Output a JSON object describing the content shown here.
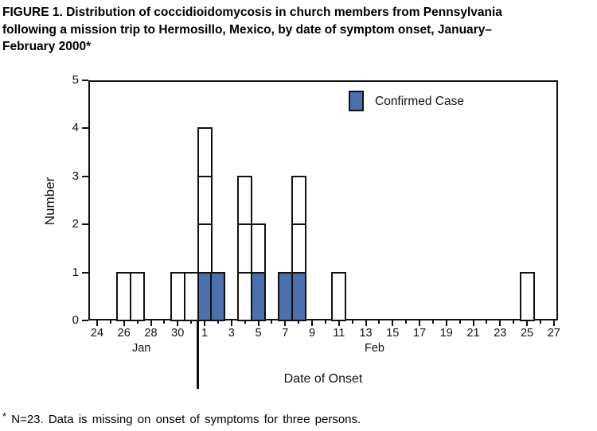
{
  "figure_title": {
    "line1": "FIGURE 1. Distribution of coccidioidomycosis in church members from Pennsylvania",
    "line2": "following a mission trip to Hermosillo, Mexico, by date of symptom onset, January–",
    "line3": "February 2000*"
  },
  "legend": {
    "label": "Confirmed Case",
    "swatch_color": "#4b70ae"
  },
  "footnote": {
    "marker": "*",
    "text": "N=23. Data is missing on onset of symptoms for three persons."
  },
  "chart_data": {
    "type": "bar",
    "subtype": "stacked-epidemic-curve",
    "title": "Distribution of coccidioidomycosis cases by date of symptom onset",
    "xlabel": "Date of Onset",
    "ylabel": "Number",
    "ylim": [
      0,
      5
    ],
    "yticks": [
      0,
      1,
      2,
      3,
      4,
      5
    ],
    "grid": false,
    "legend_position": "top-right-inside",
    "x_axis_start": {
      "month": "Jan",
      "day": 24
    },
    "x_axis_end": {
      "month": "Feb",
      "day": 27
    },
    "x_tick_labels": [
      {
        "month": "Jan",
        "day": 24
      },
      {
        "month": "Jan",
        "day": 26
      },
      {
        "month": "Jan",
        "day": 28
      },
      {
        "month": "Jan",
        "day": 30
      },
      {
        "month": "Feb",
        "day": 1
      },
      {
        "month": "Feb",
        "day": 3
      },
      {
        "month": "Feb",
        "day": 5
      },
      {
        "month": "Feb",
        "day": 7
      },
      {
        "month": "Feb",
        "day": 9
      },
      {
        "month": "Feb",
        "day": 11
      },
      {
        "month": "Feb",
        "day": 13
      },
      {
        "month": "Feb",
        "day": 15
      },
      {
        "month": "Feb",
        "day": 17
      },
      {
        "month": "Feb",
        "day": 19
      },
      {
        "month": "Feb",
        "day": 21
      },
      {
        "month": "Feb",
        "day": 23
      },
      {
        "month": "Feb",
        "day": 25
      },
      {
        "month": "Feb",
        "day": 27
      }
    ],
    "month_labels": [
      "Jan",
      "Feb"
    ],
    "bars": [
      {
        "month": "Jan",
        "day": 26,
        "cases": 1,
        "confirmed": 0
      },
      {
        "month": "Jan",
        "day": 27,
        "cases": 1,
        "confirmed": 0
      },
      {
        "month": "Jan",
        "day": 30,
        "cases": 1,
        "confirmed": 0
      },
      {
        "month": "Jan",
        "day": 31,
        "cases": 1,
        "confirmed": 0
      },
      {
        "month": "Feb",
        "day": 1,
        "cases": 4,
        "confirmed": 1
      },
      {
        "month": "Feb",
        "day": 2,
        "cases": 1,
        "confirmed": 1
      },
      {
        "month": "Feb",
        "day": 4,
        "cases": 3,
        "confirmed": 0
      },
      {
        "month": "Feb",
        "day": 5,
        "cases": 2,
        "confirmed": 1
      },
      {
        "month": "Feb",
        "day": 7,
        "cases": 1,
        "confirmed": 1
      },
      {
        "month": "Feb",
        "day": 8,
        "cases": 3,
        "confirmed": 1
      },
      {
        "month": "Feb",
        "day": 11,
        "cases": 1,
        "confirmed": 0
      },
      {
        "month": "Feb",
        "day": 25,
        "cases": 1,
        "confirmed": 0
      }
    ],
    "totals": {
      "cases_plotted": 20,
      "confirmed_cases": 5
    },
    "colors": {
      "confirmed_fill": "#4b70ae",
      "unconfirmed_fill": "#ffffff",
      "bar_border": "#111111"
    }
  }
}
